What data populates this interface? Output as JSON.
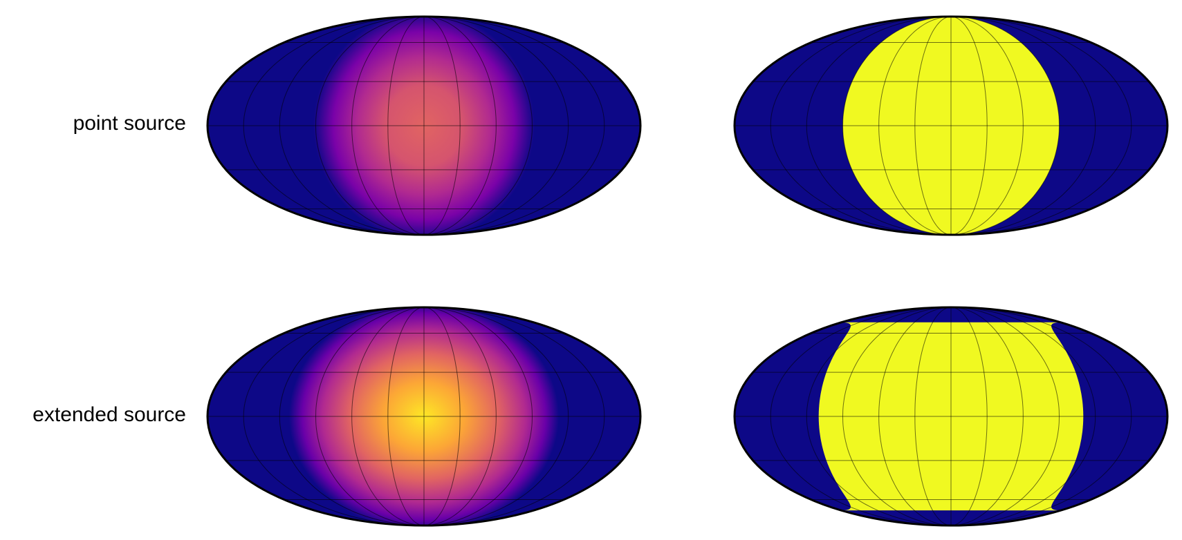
{
  "rows": [
    {
      "label": "point source"
    },
    {
      "label": "extended source"
    }
  ],
  "chart_data": [
    {
      "type": "heatmap",
      "projection": "mollweide",
      "row": "point source",
      "column": 1,
      "colormap": "plasma",
      "background_color": "#0d0887",
      "blob": {
        "center_lon": 0,
        "center_lat": 0,
        "radius_deg": 90,
        "peak_color": "#e16462",
        "profile": "smooth"
      },
      "graticule": {
        "meridians_deg": 30,
        "parallels_deg": 30
      }
    },
    {
      "type": "heatmap",
      "projection": "mollweide",
      "row": "point source",
      "column": 2,
      "colormap": "plasma",
      "background_color": "#0d0887",
      "mask": {
        "center_lon": 0,
        "center_lat": 0,
        "radius_deg": 90,
        "fill_color": "#f0f921"
      },
      "graticule": {
        "meridians_deg": 30,
        "parallels_deg": 30
      }
    },
    {
      "type": "heatmap",
      "projection": "mollweide",
      "row": "extended source",
      "column": 1,
      "colormap": "plasma",
      "background_color": "#0d0887",
      "blob": {
        "center_lon": 0,
        "center_lat": 0,
        "radius_deg": 110,
        "peak_color": "#fde725",
        "profile": "smooth"
      },
      "graticule": {
        "meridians_deg": 30,
        "parallels_deg": 30
      }
    },
    {
      "type": "heatmap",
      "projection": "mollweide",
      "row": "extended source",
      "column": 2,
      "colormap": "plasma",
      "background_color": "#0d0887",
      "mask": {
        "center_lon": 0,
        "center_lat": 0,
        "radius_deg": 110,
        "fill_color": "#f0f921"
      },
      "graticule": {
        "meridians_deg": 30,
        "parallels_deg": 30
      }
    }
  ]
}
